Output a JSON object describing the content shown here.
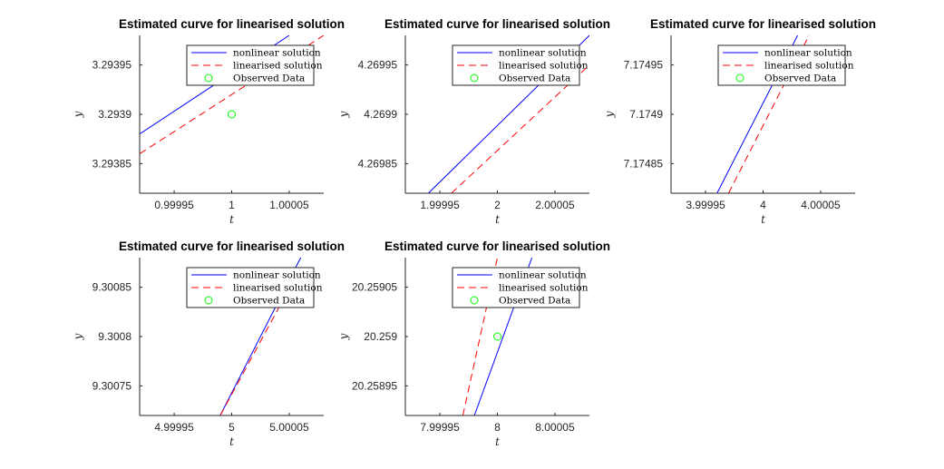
{
  "figure": {
    "background": "#ffffff"
  },
  "chart_data": [
    {
      "type": "line",
      "title": "Estimated curve for linearised solution",
      "xlabel": "t",
      "ylabel": "y",
      "xlim": [
        0.99992,
        1.00008
      ],
      "ylim": [
        3.29382,
        3.29398
      ],
      "xticks": [
        0.99995,
        1,
        1.00005
      ],
      "xtick_labels": [
        "0.99995",
        "1",
        "1.00005"
      ],
      "yticks": [
        3.29385,
        3.2939,
        3.29395
      ],
      "ytick_labels": [
        "3.29385",
        "3.2939",
        "3.29395"
      ],
      "legend_position": "top-right",
      "series": [
        {
          "name": "nonlinear solution",
          "style": "solid",
          "color": "#0000ff",
          "x": [
            0.99992,
            1.00005
          ],
          "y": [
            3.29388,
            3.29398
          ]
        },
        {
          "name": "linearised solution",
          "style": "dashed",
          "color": "#ff0000",
          "x": [
            0.99992,
            1.00008
          ],
          "y": [
            3.29386,
            3.29398
          ]
        },
        {
          "name": "Observed Data",
          "style": "marker",
          "color": "#00ff00",
          "x": [
            1
          ],
          "y": [
            3.2939
          ]
        }
      ]
    },
    {
      "type": "line",
      "title": "Estimated curve for linearised solution",
      "xlabel": "t",
      "ylabel": "y",
      "xlim": [
        1.99992,
        2.00008
      ],
      "ylim": [
        4.26982,
        4.26998
      ],
      "xticks": [
        1.99995,
        2,
        2.00005
      ],
      "xtick_labels": [
        "1.99995",
        "2",
        "2.00005"
      ],
      "yticks": [
        4.26985,
        4.2699,
        4.26995
      ],
      "ytick_labels": [
        "4.26985",
        "4.2699",
        "4.26995"
      ],
      "legend_position": "top-right",
      "series": [
        {
          "name": "nonlinear solution",
          "style": "solid",
          "color": "#0000ff",
          "x": [
            1.99994,
            2.00008
          ],
          "y": [
            4.26982,
            4.26998
          ]
        },
        {
          "name": "linearised solution",
          "style": "dashed",
          "color": "#ff0000",
          "x": [
            1.99996,
            2.00008
          ],
          "y": [
            4.26982,
            4.26995
          ]
        }
      ]
    },
    {
      "type": "line",
      "title": "Estimated curve for linearised solution",
      "xlabel": "t",
      "ylabel": "y",
      "xlim": [
        3.99992,
        4.00008
      ],
      "ylim": [
        7.17482,
        7.17498
      ],
      "xticks": [
        3.99995,
        4,
        4.00005
      ],
      "xtick_labels": [
        "3.99995",
        "4",
        "4.00005"
      ],
      "yticks": [
        7.17485,
        7.1749,
        7.17495
      ],
      "ytick_labels": [
        "7.17485",
        "7.1749",
        "7.17495"
      ],
      "legend_position": "top-right",
      "series": [
        {
          "name": "nonlinear solution",
          "style": "solid",
          "color": "#0000ff",
          "x": [
            3.99996,
            4.00003
          ],
          "y": [
            7.17482,
            7.17498
          ]
        },
        {
          "name": "linearised solution",
          "style": "dashed",
          "color": "#ff0000",
          "x": [
            3.99997,
            4.00004
          ],
          "y": [
            7.17482,
            7.17498
          ]
        }
      ]
    },
    {
      "type": "line",
      "title": "Estimated curve for linearised solution",
      "xlabel": "t",
      "ylabel": "y",
      "xlim": [
        4.99992,
        5.00008
      ],
      "ylim": [
        9.30072,
        9.30088
      ],
      "xticks": [
        4.99995,
        5,
        5.00005
      ],
      "xtick_labels": [
        "4.99995",
        "5",
        "5.00005"
      ],
      "yticks": [
        9.30075,
        9.3008,
        9.30085
      ],
      "ytick_labels": [
        "9.30075",
        "9.3008",
        "9.30085"
      ],
      "legend_position": "top-right",
      "series": [
        {
          "name": "nonlinear solution",
          "style": "solid",
          "color": "#0000ff",
          "x": [
            4.99999,
            5.00006
          ],
          "y": [
            9.30072,
            9.30088
          ]
        },
        {
          "name": "linearised solution",
          "style": "dashed",
          "color": "#ff0000",
          "x": [
            4.99999,
            5.00006
          ],
          "y": [
            9.30072,
            9.30087
          ]
        }
      ]
    },
    {
      "type": "line",
      "title": "Estimated curve for linearised solution",
      "xlabel": "t",
      "ylabel": "y",
      "xlim": [
        7.99992,
        8.00008
      ],
      "ylim": [
        20.25892,
        20.25908
      ],
      "xticks": [
        7.99995,
        8,
        8.00005
      ],
      "xtick_labels": [
        "7.99995",
        "8",
        "8.00005"
      ],
      "yticks": [
        20.25895,
        20.259,
        20.25905
      ],
      "ytick_labels": [
        "20.25895",
        "20.259",
        "20.25905"
      ],
      "legend_position": "top-right",
      "series": [
        {
          "name": "nonlinear solution",
          "style": "solid",
          "color": "#0000ff",
          "x": [
            7.99998,
            8.00003
          ],
          "y": [
            20.25892,
            20.25908
          ]
        },
        {
          "name": "linearised solution",
          "style": "dashed",
          "color": "#ff0000",
          "x": [
            7.99997,
            8
          ],
          "y": [
            20.25892,
            20.25908
          ]
        },
        {
          "name": "Observed Data",
          "style": "marker",
          "color": "#00ff00",
          "x": [
            8
          ],
          "y": [
            20.259
          ]
        }
      ]
    }
  ]
}
